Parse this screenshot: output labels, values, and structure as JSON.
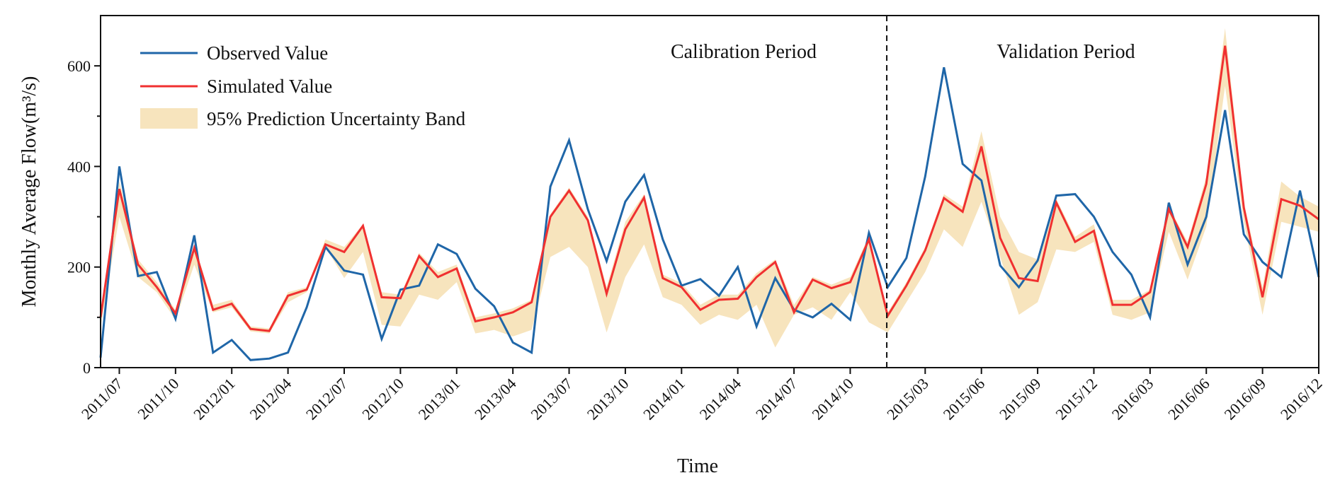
{
  "chart_data": {
    "type": "line",
    "title": "",
    "xlabel": "Time",
    "ylabel": "Monthly Average Flow(m³/s)",
    "ylim": [
      0,
      700
    ],
    "yticks": [
      "0",
      "200",
      "400",
      "600"
    ],
    "x": [
      "2011/06",
      "2011/07",
      "2011/08",
      "2011/09",
      "2011/10",
      "2011/11",
      "2011/12",
      "2012/01",
      "2012/02",
      "2012/03",
      "2012/04",
      "2012/05",
      "2012/06",
      "2012/07",
      "2012/08",
      "2012/09",
      "2012/10",
      "2012/11",
      "2012/12",
      "2013/01",
      "2013/02",
      "2013/03",
      "2013/04",
      "2013/05",
      "2013/06",
      "2013/07",
      "2013/08",
      "2013/09",
      "2013/10",
      "2013/11",
      "2013/12",
      "2014/01",
      "2014/02",
      "2014/03",
      "2014/04",
      "2014/05",
      "2014/06",
      "2014/07",
      "2014/08",
      "2014/09",
      "2014/10",
      "2014/11",
      "2015/01",
      "2015/02",
      "2015/03",
      "2015/04",
      "2015/05",
      "2015/06",
      "2015/07",
      "2015/08",
      "2015/09",
      "2015/10",
      "2015/11",
      "2015/12",
      "2016/01",
      "2016/02",
      "2016/03",
      "2016/04",
      "2016/05",
      "2016/06",
      "2016/07",
      "2016/08",
      "2016/09",
      "2016/10",
      "2016/11",
      "2016/12"
    ],
    "xtick_labels": [
      "2011/07",
      "2011/10",
      "2012/01",
      "2012/04",
      "2012/07",
      "2012/10",
      "2013/01",
      "2013/04",
      "2013/07",
      "2013/10",
      "2014/01",
      "2014/04",
      "2014/07",
      "2014/10",
      "2015/03",
      "2015/06",
      "2015/09",
      "2015/12",
      "2016/03",
      "2016/06",
      "2016/09",
      "2016/12"
    ],
    "series": [
      {
        "name": "Observed Value",
        "color": "#1f66a8",
        "values": [
          20,
          400,
          182,
          190,
          97,
          263,
          30,
          55,
          15,
          18,
          30,
          120,
          240,
          193,
          185,
          57,
          155,
          163,
          245,
          226,
          157,
          122,
          50,
          30,
          360,
          452,
          315,
          212,
          330,
          383,
          255,
          163,
          176,
          143,
          200,
          82,
          178,
          115,
          100,
          127,
          95,
          268,
          160,
          218,
          380,
          597,
          405,
          372,
          203,
          160,
          213,
          342,
          345,
          300,
          230,
          185,
          100,
          328,
          205,
          300,
          512,
          265,
          210,
          180,
          352,
          180
        ]
      },
      {
        "name": "Simulated Value",
        "color": "#f03030",
        "values": [
          100,
          355,
          205,
          160,
          108,
          238,
          115,
          127,
          77,
          73,
          143,
          155,
          245,
          230,
          282,
          140,
          138,
          222,
          180,
          197,
          92,
          100,
          110,
          130,
          300,
          352,
          293,
          147,
          275,
          338,
          178,
          160,
          115,
          135,
          137,
          180,
          210,
          110,
          175,
          158,
          170,
          255,
          103,
          163,
          233,
          337,
          310,
          440,
          258,
          178,
          172,
          328,
          250,
          272,
          125,
          125,
          150,
          315,
          240,
          365,
          640,
          318,
          140,
          335,
          322,
          295
        ]
      }
    ],
    "band": {
      "name": "95% Prediction Uncertainty Band",
      "color": "#f7e4bd",
      "lower": [
        80,
        300,
        180,
        150,
        95,
        205,
        110,
        120,
        72,
        68,
        130,
        150,
        240,
        178,
        230,
        85,
        82,
        145,
        135,
        170,
        68,
        75,
        62,
        75,
        220,
        240,
        200,
        70,
        180,
        245,
        140,
        125,
        85,
        105,
        95,
        125,
        40,
        105,
        120,
        95,
        150,
        90,
        70,
        130,
        190,
        275,
        240,
        330,
        220,
        105,
        130,
        235,
        230,
        250,
        105,
        95,
        110,
        270,
        175,
        280,
        560,
        290,
        105,
        290,
        280,
        270
      ],
      "upper": [
        110,
        370,
        215,
        170,
        115,
        245,
        125,
        135,
        82,
        78,
        150,
        160,
        255,
        240,
        285,
        150,
        145,
        228,
        190,
        205,
        100,
        108,
        118,
        135,
        305,
        358,
        300,
        160,
        290,
        345,
        185,
        168,
        125,
        145,
        145,
        188,
        215,
        125,
        180,
        165,
        180,
        262,
        110,
        170,
        240,
        345,
        320,
        470,
        300,
        230,
        215,
        335,
        260,
        285,
        135,
        135,
        155,
        320,
        250,
        380,
        675,
        330,
        160,
        370,
        340,
        320
      ]
    },
    "divider_after": "2014/11",
    "annotations": [
      "Calibration Period",
      "Validation Period"
    ],
    "legend": {
      "placement": "top-left",
      "entries": [
        "Observed Value",
        "Simulated Value",
        "95% Prediction Uncertainty Band"
      ]
    },
    "grid": false
  }
}
